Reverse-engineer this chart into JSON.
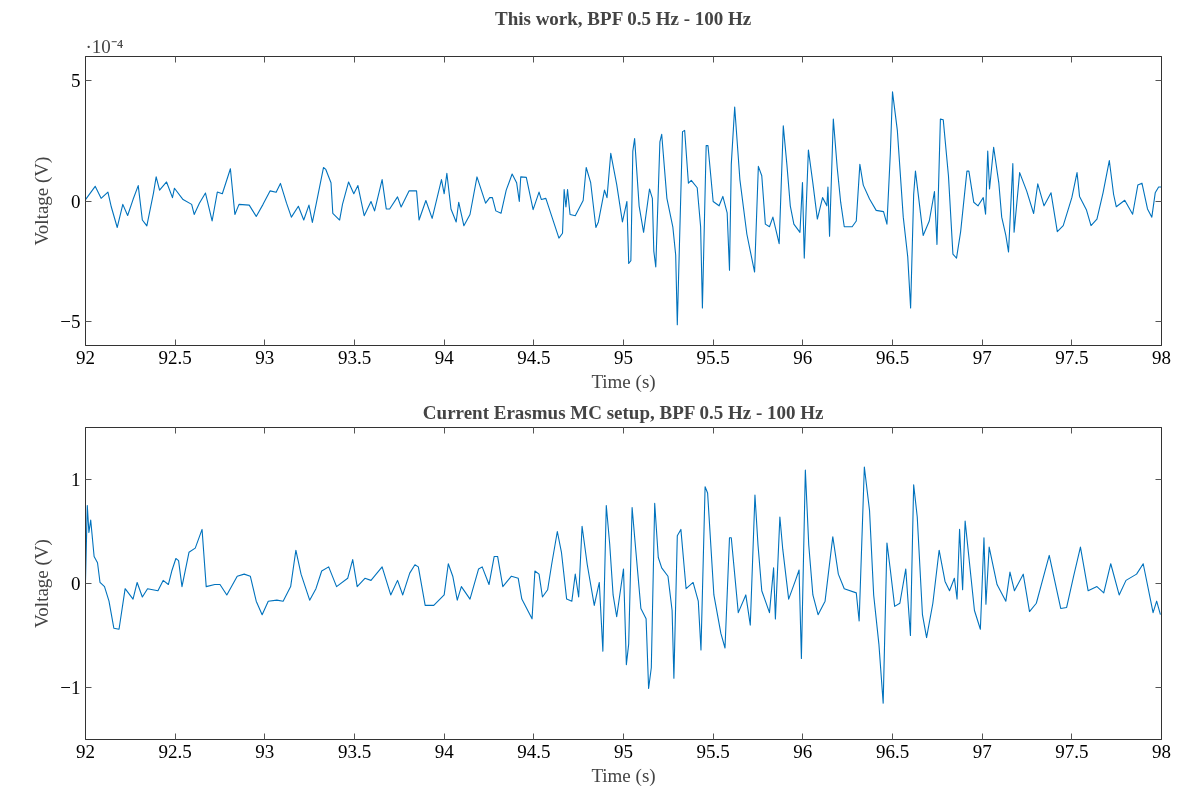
{
  "chart_data": [
    {
      "type": "line",
      "title": "This work, BPF 0.5 Hz - 100 Hz",
      "xlabel": "Time (s)",
      "ylabel": "Voltage (V)",
      "annotations": [
        "·10⁻⁴"
      ],
      "xlim": [
        92,
        98
      ],
      "ylim": [
        -6,
        6
      ],
      "xticks": [
        92,
        92.5,
        93,
        93.5,
        94,
        94.5,
        95,
        95.5,
        96,
        96.5,
        97,
        97.5,
        98
      ],
      "yticks": [
        -5,
        0,
        5
      ],
      "x": [
        92.0,
        92.054,
        92.087,
        92.125,
        92.144,
        92.177,
        92.208,
        92.235,
        92.265,
        92.294,
        92.317,
        92.342,
        92.379,
        92.394,
        92.413,
        92.452,
        92.485,
        92.496,
        92.544,
        92.592,
        92.606,
        92.635,
        92.669,
        92.706,
        92.735,
        92.763,
        92.808,
        92.833,
        92.856,
        92.913,
        92.952,
        92.99,
        93.029,
        93.063,
        93.087,
        93.121,
        93.148,
        93.187,
        93.217,
        93.246,
        93.265,
        93.285,
        93.327,
        93.34,
        93.369,
        93.379,
        93.417,
        93.433,
        93.467,
        93.496,
        93.519,
        93.554,
        93.592,
        93.612,
        93.654,
        93.677,
        93.696,
        93.74,
        93.76,
        93.804,
        93.846,
        93.86,
        93.898,
        93.933,
        93.985,
        94.0,
        94.015,
        94.038,
        94.067,
        94.081,
        94.11,
        94.144,
        94.183,
        94.231,
        94.254,
        94.269,
        94.288,
        94.317,
        94.346,
        94.379,
        94.404,
        94.419,
        94.427,
        94.458,
        94.496,
        94.529,
        94.542,
        94.567,
        94.64,
        94.66,
        94.669,
        94.679,
        94.688,
        94.702,
        94.731,
        94.775,
        94.792,
        94.817,
        94.846,
        94.86,
        94.894,
        94.908,
        94.929,
        94.962,
        94.994,
        95.019,
        95.029,
        95.041,
        95.052,
        95.062,
        95.087,
        95.112,
        95.145,
        95.161,
        95.169,
        95.18,
        95.203,
        95.213,
        95.242,
        95.275,
        95.291,
        95.3,
        95.329,
        95.341,
        95.362,
        95.378,
        95.411,
        95.43,
        95.44,
        95.461,
        95.471,
        95.5,
        95.533,
        95.554,
        95.578,
        95.591,
        95.601,
        95.62,
        95.649,
        95.688,
        95.707,
        95.731,
        95.752,
        95.771,
        95.791,
        95.814,
        95.833,
        95.868,
        95.891,
        95.911,
        95.93,
        95.95,
        95.984,
        95.998,
        96.008,
        96.031,
        96.056,
        96.081,
        96.11,
        96.134,
        96.14,
        96.149,
        96.17,
        96.192,
        96.211,
        96.231,
        96.275,
        96.298,
        96.318,
        96.337,
        96.372,
        96.409,
        96.45,
        96.469,
        96.488,
        96.5,
        96.527,
        96.56,
        96.585,
        96.601,
        96.618,
        96.628,
        96.671,
        96.705,
        96.734,
        96.748,
        96.767,
        96.783,
        96.812,
        96.837,
        96.857,
        96.88,
        96.915,
        96.926,
        96.953,
        96.977,
        97.006,
        97.019,
        97.031,
        97.041,
        97.064,
        97.093,
        97.109,
        97.132,
        97.147,
        97.171,
        97.178,
        97.209,
        97.248,
        97.287,
        97.31,
        97.345,
        97.384,
        97.419,
        97.452,
        97.5,
        97.529,
        97.543,
        97.581,
        97.607,
        97.64,
        97.674,
        97.709,
        97.733,
        97.748,
        97.795,
        97.839,
        97.868,
        97.891,
        97.922,
        97.946,
        97.965,
        97.984,
        98.0
      ],
      "series": [
        {
          "color": "#0072bd",
          "values": [
            0.06,
            0.61,
            0.11,
            0.37,
            -0.25,
            -1.1,
            -0.14,
            -0.6,
            0.06,
            0.64,
            -0.79,
            -1.03,
            0.33,
            1.0,
            0.45,
            0.79,
            0.14,
            0.53,
            0.06,
            -0.14,
            -0.56,
            -0.09,
            0.33,
            -0.83,
            0.37,
            0.3,
            1.34,
            -0.56,
            -0.14,
            -0.17,
            -0.64,
            -0.14,
            0.42,
            0.36,
            0.73,
            -0.09,
            -0.67,
            -0.22,
            -0.79,
            -0.17,
            -0.89,
            -0.17,
            1.39,
            1.31,
            0.76,
            -0.51,
            -0.79,
            -0.14,
            0.79,
            0.3,
            0.64,
            -0.61,
            -0.02,
            -0.41,
            0.89,
            -0.33,
            -0.33,
            0.17,
            -0.25,
            0.42,
            0.42,
            -0.79,
            0.02,
            -0.72,
            0.89,
            0.3,
            1.15,
            -0.33,
            -0.87,
            -0.05,
            -1.03,
            -0.56,
            1.0,
            -0.09,
            0.14,
            0.14,
            -0.41,
            -0.51,
            0.45,
            1.12,
            0.76,
            -0.02,
            1.0,
            0.98,
            -0.36,
            0.37,
            0.06,
            0.11,
            -1.54,
            -1.34,
            0.48,
            -0.25,
            0.48,
            -0.56,
            -0.61,
            0.02,
            1.39,
            0.76,
            -1.1,
            -0.87,
            0.45,
            0.14,
            1.98,
            0.69,
            -0.87,
            -0.02,
            -2.59,
            -2.48,
            2.07,
            2.59,
            -0.2,
            -1.3,
            0.5,
            0.11,
            -2.08,
            -2.74,
            2.46,
            2.77,
            0.11,
            -1.07,
            -2.24,
            -5.14,
            2.88,
            2.93,
            0.74,
            0.86,
            0.55,
            -1.07,
            -4.44,
            2.3,
            2.3,
            -0.02,
            -0.2,
            0.19,
            -0.49,
            -2.87,
            1.52,
            3.9,
            0.89,
            -1.38,
            -2.08,
            -2.95,
            1.44,
            1.05,
            -0.96,
            -1.07,
            -0.67,
            -1.77,
            3.12,
            1.52,
            -0.2,
            -0.96,
            -1.3,
            0.77,
            -2.37,
            2.12,
            0.74,
            -0.75,
            0.14,
            -0.2,
            0.58,
            -1.46,
            3.4,
            1.36,
            -0.05,
            -1.07,
            -1.07,
            -0.83,
            1.52,
            0.66,
            0.08,
            -0.39,
            -0.44,
            -0.96,
            1.99,
            4.53,
            2.93,
            -0.67,
            -2.32,
            -4.44,
            0.27,
            1.24,
            -1.43,
            -0.83,
            0.39,
            -1.8,
            3.4,
            3.37,
            1.05,
            -2.21,
            -2.37,
            -1.27,
            1.24,
            1.24,
            -0.05,
            -0.2,
            0.14,
            -0.55,
            2.07,
            0.5,
            2.23,
            0.74,
            -0.67,
            -1.43,
            -2.12,
            1.55,
            -1.3,
            1.18,
            0.42,
            -0.52,
            0.71,
            -0.2,
            0.34,
            -1.27,
            -1.02,
            0.14,
            1.18,
            0.19,
            -0.36,
            -1.02,
            -0.75,
            0.34,
            1.68,
            0.27,
            -0.24,
            0.03,
            -0.55,
            0.66,
            0.74,
            -0.33,
            -0.67,
            0.34,
            0.58,
            0.58
          ]
        }
      ]
    },
    {
      "type": "line",
      "title": "Current Erasmus MC setup, BPF 0.5 Hz - 100 Hz",
      "xlabel": "Time (s)",
      "ylabel": "Voltage (V)",
      "xlim": [
        92,
        98
      ],
      "ylim": [
        -1.5,
        1.5
      ],
      "xticks": [
        92,
        92.5,
        93,
        93.5,
        94,
        94.5,
        95,
        95.5,
        96,
        96.5,
        97,
        97.5,
        98
      ],
      "yticks": [
        -1,
        0,
        1
      ],
      "x": [
        92.0,
        92.01,
        92.019,
        92.029,
        92.048,
        92.067,
        92.081,
        92.106,
        92.131,
        92.158,
        92.187,
        92.221,
        92.265,
        92.288,
        92.317,
        92.346,
        92.404,
        92.433,
        92.462,
        92.481,
        92.504,
        92.519,
        92.538,
        92.577,
        92.612,
        92.65,
        92.673,
        92.721,
        92.75,
        92.788,
        92.846,
        92.885,
        92.919,
        92.952,
        92.985,
        93.019,
        93.067,
        93.102,
        93.144,
        93.173,
        93.202,
        93.25,
        93.285,
        93.317,
        93.356,
        93.4,
        93.462,
        93.49,
        93.515,
        93.558,
        93.592,
        93.654,
        93.702,
        93.74,
        93.769,
        93.808,
        93.837,
        93.856,
        93.894,
        93.942,
        94.0,
        94.023,
        94.048,
        94.073,
        94.096,
        94.144,
        94.192,
        94.212,
        94.25,
        94.279,
        94.298,
        94.327,
        94.375,
        94.413,
        94.433,
        94.49,
        94.506,
        94.529,
        94.548,
        94.577,
        94.6,
        94.631,
        94.654,
        94.683,
        94.712,
        94.731,
        94.75,
        94.769,
        94.798,
        94.837,
        94.865,
        94.885,
        94.904,
        94.923,
        94.942,
        94.962,
        95.0,
        95.016,
        95.029,
        95.048,
        95.068,
        95.097,
        95.126,
        95.14,
        95.155,
        95.174,
        95.194,
        95.213,
        95.248,
        95.271,
        95.281,
        95.3,
        95.32,
        95.349,
        95.388,
        95.417,
        95.432,
        95.455,
        95.469,
        95.504,
        95.543,
        95.566,
        95.591,
        95.601,
        95.64,
        95.682,
        95.707,
        95.733,
        95.75,
        95.771,
        95.814,
        95.837,
        95.847,
        95.872,
        95.888,
        95.921,
        95.959,
        95.979,
        95.992,
        96.014,
        96.033,
        96.056,
        96.085,
        96.124,
        96.167,
        96.198,
        96.231,
        96.298,
        96.314,
        96.343,
        96.372,
        96.395,
        96.424,
        96.448,
        96.469,
        96.488,
        96.512,
        96.541,
        96.574,
        96.6,
        96.618,
        96.638,
        96.667,
        96.69,
        96.725,
        96.76,
        96.793,
        96.818,
        96.845,
        96.86,
        96.874,
        96.891,
        96.905,
        96.957,
        96.99,
        97.01,
        97.021,
        97.039,
        97.083,
        97.132,
        97.155,
        97.18,
        97.229,
        97.264,
        97.302,
        97.33,
        97.374,
        97.399,
        97.438,
        97.471,
        97.51,
        97.548,
        97.591,
        97.64,
        97.678,
        97.717,
        97.764,
        97.802,
        97.861,
        97.898,
        97.953,
        97.973,
        97.994
      ],
      "series": [
        {
          "color": "#0072bd",
          "values": [
            0.03,
            0.75,
            0.49,
            0.61,
            0.26,
            0.2,
            0.01,
            -0.03,
            -0.17,
            -0.43,
            -0.44,
            -0.05,
            -0.15,
            0.01,
            -0.13,
            -0.05,
            -0.07,
            0.03,
            -0.01,
            0.12,
            0.24,
            0.22,
            -0.03,
            0.3,
            0.34,
            0.52,
            -0.03,
            -0.01,
            -0.01,
            -0.11,
            0.07,
            0.09,
            0.07,
            -0.17,
            -0.3,
            -0.17,
            -0.16,
            -0.17,
            -0.03,
            0.32,
            0.09,
            -0.16,
            -0.05,
            0.12,
            0.16,
            -0.03,
            0.05,
            0.23,
            -0.03,
            0.05,
            0.03,
            0.16,
            -0.11,
            0.03,
            -0.11,
            0.1,
            0.18,
            0.16,
            -0.21,
            -0.21,
            -0.11,
            0.19,
            0.07,
            -0.16,
            -0.03,
            -0.15,
            0.14,
            0.16,
            -0.01,
            0.26,
            0.26,
            -0.03,
            0.07,
            0.05,
            -0.15,
            -0.34,
            0.12,
            0.09,
            -0.13,
            -0.06,
            0.19,
            0.5,
            0.3,
            -0.15,
            -0.17,
            0.09,
            -0.13,
            0.55,
            0.18,
            -0.21,
            0.01,
            -0.65,
            0.75,
            0.38,
            -0.11,
            -0.32,
            0.14,
            -0.78,
            -0.58,
            0.73,
            0.33,
            -0.24,
            -0.34,
            -1.01,
            -0.81,
            0.77,
            0.25,
            0.15,
            0.07,
            -0.26,
            -0.91,
            0.46,
            0.52,
            -0.05,
            0.01,
            -0.17,
            -0.64,
            0.93,
            0.87,
            -0.11,
            -0.48,
            -0.62,
            0.44,
            0.44,
            -0.28,
            -0.11,
            -0.4,
            0.85,
            0.37,
            -0.07,
            -0.28,
            0.15,
            -0.34,
            0.64,
            0.33,
            -0.15,
            0.03,
            0.13,
            -0.72,
            1.09,
            0.37,
            -0.11,
            -0.3,
            -0.17,
            0.45,
            0.09,
            -0.05,
            -0.09,
            -0.36,
            1.12,
            0.7,
            -0.11,
            -0.58,
            -1.15,
            0.39,
            0.13,
            -0.22,
            -0.19,
            0.14,
            -0.5,
            0.95,
            0.64,
            -0.3,
            -0.52,
            -0.19,
            0.32,
            0.02,
            -0.07,
            0.05,
            -0.15,
            0.52,
            -0.06,
            0.6,
            -0.26,
            -0.44,
            0.44,
            -0.2,
            0.35,
            -0.01,
            -0.17,
            0.11,
            -0.07,
            0.09,
            -0.27,
            -0.19,
            -0.01,
            0.27,
            0.07,
            -0.24,
            -0.23,
            0.07,
            0.35,
            -0.07,
            -0.03,
            -0.09,
            0.19,
            -0.11,
            0.03,
            0.09,
            0.19,
            -0.28,
            -0.17,
            -0.3
          ]
        }
      ]
    }
  ]
}
